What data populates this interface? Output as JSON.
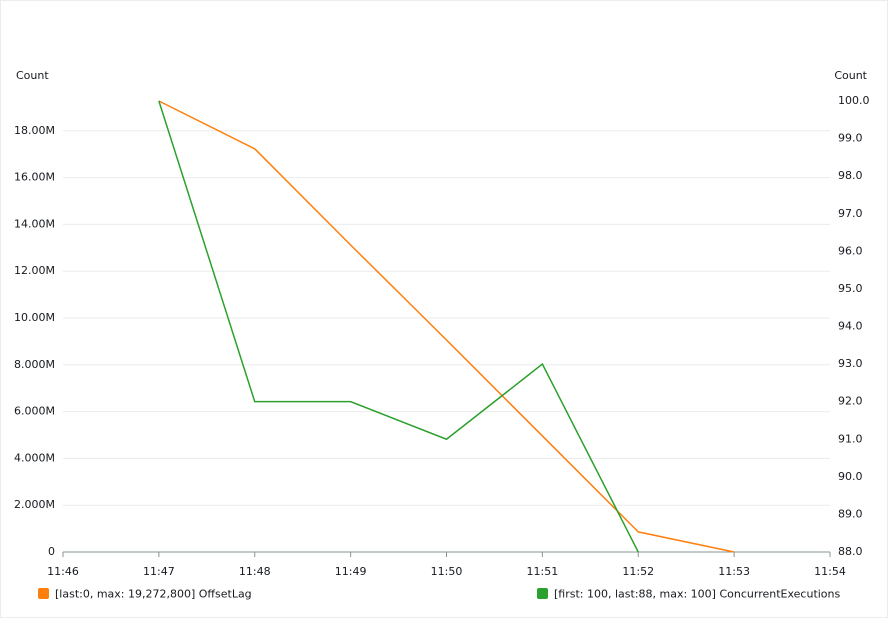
{
  "chart_data": {
    "type": "line",
    "y_label": "Count",
    "y2_label": "Count",
    "categories": [
      "11:46",
      "11:47",
      "11:48",
      "11:49",
      "11:50",
      "11:51",
      "11:52",
      "11:53",
      "11:54"
    ],
    "series": [
      {
        "name": "[last:0, max: 19,272,800] OffsetLag",
        "color": "#ff7f0e",
        "axis": "y",
        "values": [
          null,
          19272800,
          17230000,
          13120000,
          9060000,
          4960000,
          860000,
          0,
          null
        ]
      },
      {
        "name": "[first: 100, last:88, max: 100] ConcurrentExecutions",
        "color": "#2ca02c",
        "axis": "y2",
        "values": [
          null,
          100,
          92,
          92,
          91,
          93,
          88,
          null,
          null
        ]
      }
    ],
    "ylim": [
      0,
      19272800
    ],
    "yticks": [
      0,
      {
        "value": 2000000,
        "label": "2.000M"
      },
      {
        "value": 4000000,
        "label": "4.000M"
      },
      {
        "value": 6000000,
        "label": "6.000M"
      },
      {
        "value": 8000000,
        "label": "8.000M"
      },
      {
        "value": 10000000,
        "label": "10.00M"
      },
      {
        "value": 12000000,
        "label": "12.00M"
      },
      {
        "value": 14000000,
        "label": "14.00M"
      },
      {
        "value": 16000000,
        "label": "16.00M"
      },
      {
        "value": 18000000,
        "label": "18.00M"
      }
    ],
    "y2lim": [
      88,
      100
    ],
    "y2ticks": [
      {
        "value": 88,
        "label": "88.0"
      },
      {
        "value": 89,
        "label": "89.0"
      },
      {
        "value": 90,
        "label": "90.0"
      },
      {
        "value": 91,
        "label": "91.0"
      },
      {
        "value": 92,
        "label": "92.0"
      },
      {
        "value": 93,
        "label": "93.0"
      },
      {
        "value": 94,
        "label": "94.0"
      },
      {
        "value": 95,
        "label": "95.0"
      },
      {
        "value": 96,
        "label": "96.0"
      },
      {
        "value": 97,
        "label": "97.0"
      },
      {
        "value": 98,
        "label": "98.0"
      },
      {
        "value": 99,
        "label": "99.0"
      },
      {
        "value": 100,
        "label": "100.0"
      }
    ],
    "grid": true
  }
}
